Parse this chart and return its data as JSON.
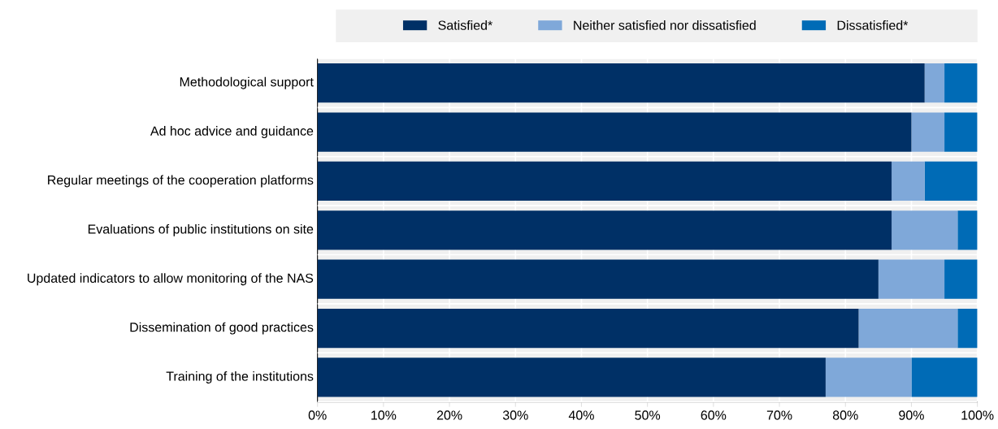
{
  "chart_data": {
    "type": "bar",
    "orientation": "horizontal",
    "stacked": true,
    "grid": true,
    "legend": "top",
    "categories": [
      "Methodological support",
      "Ad hoc advice and guidance",
      "Regular meetings of the cooperation platforms",
      "Evaluations of public institutions on site",
      "Updated indicators to allow monitoring of the NAS",
      "Dissemination of good practices",
      "Training of the institutions"
    ],
    "series": [
      {
        "name": "Satisfied*",
        "color": "#003066",
        "values": [
          92,
          90,
          87,
          87,
          85,
          82,
          77
        ]
      },
      {
        "name": "Neither satisfied nor dissatisfied",
        "color": "#7fa8d9",
        "values": [
          3,
          5,
          5,
          10,
          10,
          15,
          13
        ]
      },
      {
        "name": "Dissatisfied*",
        "color": "#006bb6",
        "values": [
          5,
          5,
          8,
          3,
          5,
          3,
          10
        ]
      }
    ],
    "xlim": [
      0,
      100
    ],
    "xticks": [
      {
        "value": 0,
        "label": "0%"
      },
      {
        "value": 10,
        "label": "10%"
      },
      {
        "value": 20,
        "label": "20%"
      },
      {
        "value": 30,
        "label": "30%"
      },
      {
        "value": 40,
        "label": "40%"
      },
      {
        "value": 50,
        "label": "50%"
      },
      {
        "value": 60,
        "label": "60%"
      },
      {
        "value": 70,
        "label": "70%"
      },
      {
        "value": 80,
        "label": "80%"
      },
      {
        "value": 90,
        "label": "90%"
      },
      {
        "value": 100,
        "label": "100%"
      }
    ]
  }
}
